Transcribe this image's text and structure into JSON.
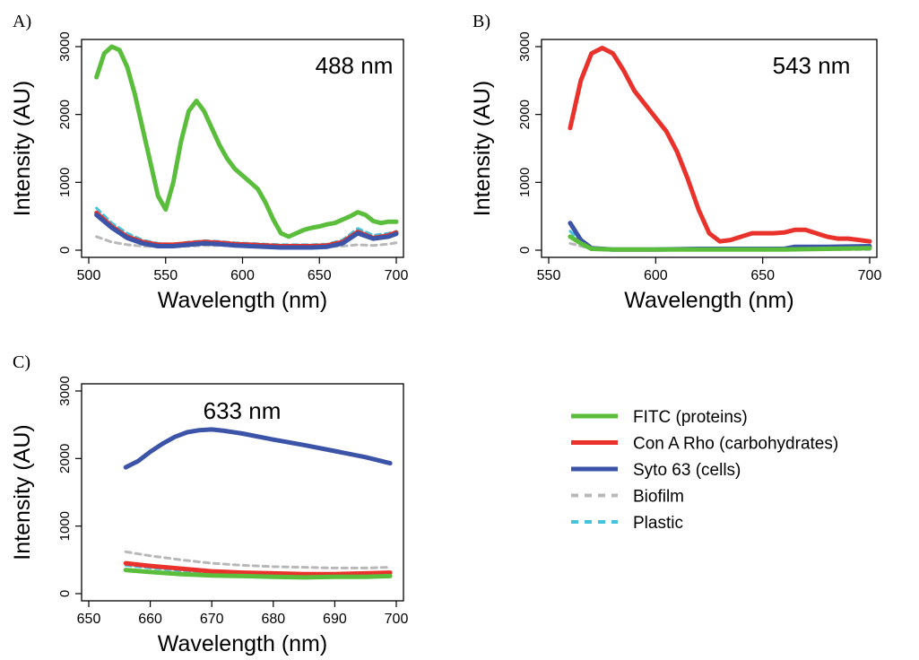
{
  "chart_data": [
    {
      "type": "line",
      "panel_label": "A)",
      "title": "488 nm",
      "xlabel": "Wavelength (nm)",
      "ylabel": "Intensity (AU)",
      "xlim": [
        500,
        700
      ],
      "ylim": [
        0,
        3000
      ],
      "xticks": [
        500,
        550,
        600,
        650,
        700
      ],
      "yticks": [
        0,
        1000,
        2000,
        3000
      ],
      "series": [
        {
          "name": "FITC (proteins)",
          "x": [
            505,
            510,
            515,
            520,
            525,
            530,
            535,
            540,
            545,
            550,
            555,
            560,
            565,
            570,
            575,
            580,
            585,
            590,
            595,
            600,
            605,
            610,
            615,
            620,
            625,
            630,
            635,
            640,
            645,
            650,
            655,
            660,
            665,
            670,
            675,
            680,
            685,
            690,
            695,
            700
          ],
          "y": [
            2550,
            2900,
            3000,
            2950,
            2700,
            2300,
            1800,
            1300,
            800,
            600,
            1000,
            1600,
            2050,
            2200,
            2050,
            1800,
            1550,
            1350,
            1200,
            1100,
            1000,
            900,
            700,
            450,
            250,
            200,
            250,
            300,
            330,
            350,
            380,
            400,
            450,
            500,
            560,
            520,
            430,
            400,
            420,
            420
          ]
        },
        {
          "name": "Con A Rho (carbohydrates)",
          "x": [
            505,
            515,
            525,
            535,
            545,
            555,
            565,
            575,
            585,
            595,
            605,
            615,
            625,
            635,
            645,
            655,
            665,
            675,
            685,
            695,
            700
          ],
          "y": [
            550,
            350,
            200,
            120,
            80,
            80,
            100,
            120,
            110,
            90,
            80,
            70,
            60,
            60,
            60,
            70,
            120,
            270,
            180,
            220,
            260
          ]
        },
        {
          "name": "Syto 63 (cells)",
          "x": [
            505,
            515,
            525,
            535,
            545,
            555,
            565,
            575,
            585,
            595,
            605,
            615,
            625,
            635,
            645,
            655,
            665,
            675,
            685,
            695,
            700
          ],
          "y": [
            520,
            330,
            180,
            100,
            60,
            60,
            80,
            100,
            90,
            70,
            60,
            50,
            40,
            40,
            40,
            50,
            100,
            250,
            170,
            200,
            240
          ]
        },
        {
          "name": "Biofilm",
          "x": [
            505,
            515,
            525,
            535,
            545,
            555,
            565,
            575,
            585,
            595,
            605,
            615,
            625,
            635,
            645,
            655,
            665,
            675,
            685,
            695,
            700
          ],
          "y": [
            200,
            120,
            80,
            60,
            50,
            50,
            60,
            70,
            70,
            60,
            50,
            50,
            40,
            40,
            40,
            50,
            60,
            80,
            70,
            90,
            110
          ]
        },
        {
          "name": "Plastic",
          "x": [
            505,
            515,
            525,
            535,
            545,
            555,
            565,
            575,
            585,
            595,
            605,
            615,
            625,
            635,
            645,
            655,
            665,
            675,
            685,
            695,
            700
          ],
          "y": [
            620,
            400,
            250,
            150,
            100,
            90,
            120,
            140,
            130,
            110,
            100,
            90,
            80,
            80,
            80,
            90,
            150,
            320,
            220,
            250,
            280
          ]
        }
      ]
    },
    {
      "type": "line",
      "panel_label": "B)",
      "title": "543 nm",
      "xlabel": "Wavelength (nm)",
      "ylabel": "Intensity (AU)",
      "xlim": [
        550,
        700
      ],
      "ylim": [
        0,
        3000
      ],
      "xticks": [
        550,
        600,
        650,
        700
      ],
      "yticks": [
        0,
        1000,
        2000,
        3000
      ],
      "series": [
        {
          "name": "FITC (proteins)",
          "x": [
            560,
            565,
            570,
            580,
            600,
            620,
            640,
            660,
            680,
            700
          ],
          "y": [
            200,
            100,
            20,
            10,
            10,
            10,
            10,
            10,
            20,
            30
          ]
        },
        {
          "name": "Con A Rho (carbohydrates)",
          "x": [
            560,
            565,
            570,
            575,
            580,
            585,
            590,
            595,
            600,
            605,
            610,
            615,
            620,
            625,
            630,
            635,
            640,
            645,
            650,
            655,
            660,
            665,
            670,
            675,
            680,
            685,
            690,
            695,
            700
          ],
          "y": [
            1800,
            2500,
            2900,
            2980,
            2900,
            2650,
            2350,
            2150,
            1950,
            1750,
            1450,
            1050,
            600,
            250,
            130,
            150,
            200,
            250,
            250,
            250,
            260,
            300,
            300,
            250,
            200,
            170,
            170,
            150,
            130
          ]
        },
        {
          "name": "Syto 63 (cells)",
          "x": [
            560,
            565,
            570,
            580,
            600,
            620,
            640,
            660,
            665,
            680,
            700
          ],
          "y": [
            400,
            150,
            30,
            10,
            10,
            20,
            20,
            20,
            50,
            50,
            60
          ]
        },
        {
          "name": "Biofilm",
          "x": [
            560,
            570,
            580,
            600,
            620,
            640,
            660,
            680,
            700
          ],
          "y": [
            100,
            20,
            10,
            10,
            10,
            10,
            10,
            10,
            10
          ]
        },
        {
          "name": "Plastic",
          "x": [
            560,
            565,
            570,
            580,
            600,
            620,
            640,
            660,
            680,
            700
          ],
          "y": [
            280,
            120,
            30,
            15,
            15,
            15,
            15,
            20,
            30,
            40
          ]
        }
      ]
    },
    {
      "type": "line",
      "panel_label": "C)",
      "title": "633 nm",
      "xlabel": "Wavelength (nm)",
      "ylabel": "Intensity (AU)",
      "xlim": [
        650,
        700
      ],
      "ylim": [
        0,
        3000
      ],
      "xticks": [
        650,
        660,
        670,
        680,
        690,
        700
      ],
      "yticks": [
        0,
        1000,
        2000,
        3000
      ],
      "series": [
        {
          "name": "FITC (proteins)",
          "x": [
            656,
            660,
            665,
            670,
            675,
            680,
            685,
            690,
            695,
            699
          ],
          "y": [
            350,
            320,
            290,
            270,
            260,
            250,
            240,
            250,
            250,
            260
          ]
        },
        {
          "name": "Con A Rho (carbohydrates)",
          "x": [
            656,
            660,
            665,
            670,
            675,
            680,
            685,
            690,
            695,
            699
          ],
          "y": [
            450,
            410,
            370,
            330,
            310,
            300,
            290,
            290,
            300,
            310
          ]
        },
        {
          "name": "Syto 63 (cells)",
          "x": [
            656,
            658,
            660,
            662,
            664,
            666,
            668,
            670,
            672,
            675,
            680,
            685,
            690,
            695,
            699
          ],
          "y": [
            1870,
            1960,
            2100,
            2220,
            2320,
            2390,
            2420,
            2430,
            2410,
            2370,
            2280,
            2200,
            2110,
            2020,
            1930
          ]
        },
        {
          "name": "Biofilm",
          "x": [
            656,
            660,
            665,
            670,
            675,
            680,
            685,
            690,
            695,
            699
          ],
          "y": [
            620,
            560,
            500,
            450,
            420,
            400,
            390,
            380,
            380,
            390
          ]
        },
        {
          "name": "Plastic",
          "x": [
            656,
            660,
            665,
            670,
            675,
            680,
            685,
            690,
            695,
            699
          ],
          "y": [
            420,
            380,
            340,
            310,
            290,
            280,
            275,
            280,
            285,
            290
          ]
        }
      ]
    }
  ],
  "legend": [
    {
      "name": "FITC (proteins)",
      "color": "#5bbd3c",
      "style": "solid"
    },
    {
      "name": "Con A Rho (carbohydrates)",
      "color": "#e8322b",
      "style": "solid"
    },
    {
      "name": "Syto 63 (cells)",
      "color": "#3b54a8",
      "style": "solid"
    },
    {
      "name": "Biofilm",
      "color": "#b8b8b8",
      "style": "dashed"
    },
    {
      "name": "Plastic",
      "color": "#45c3dc",
      "style": "dashed"
    }
  ]
}
